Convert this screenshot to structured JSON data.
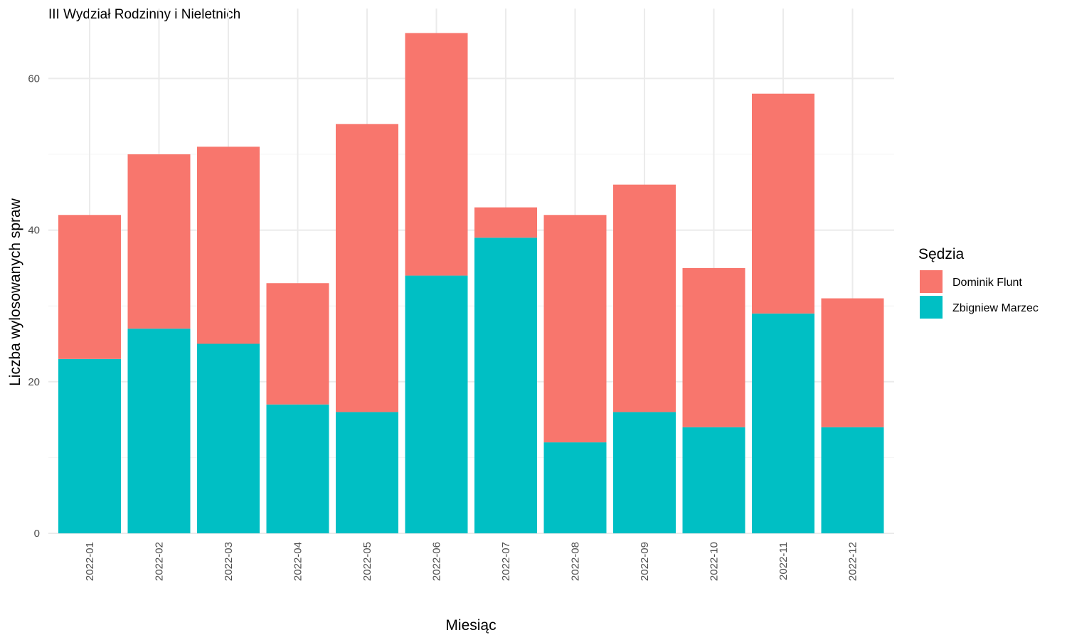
{
  "chart_data": {
    "type": "bar",
    "stacked": true,
    "title": "III Wydział Rodzinny i Nieletnich",
    "xlabel": "Miesiąc",
    "ylabel": "Liczba wylosowanych spraw",
    "categories": [
      "2022-01",
      "2022-02",
      "2022-03",
      "2022-04",
      "2022-05",
      "2022-06",
      "2022-07",
      "2022-08",
      "2022-09",
      "2022-10",
      "2022-11",
      "2022-12"
    ],
    "series": [
      {
        "name": "Zbigniew Marzec",
        "color": "#00BFC4",
        "values": [
          23,
          27,
          25,
          17,
          16,
          34,
          39,
          12,
          16,
          14,
          29,
          14
        ]
      },
      {
        "name": "Dominik Flunt",
        "color": "#F8766D",
        "values": [
          19,
          23,
          26,
          16,
          38,
          32,
          4,
          30,
          30,
          21,
          29,
          17
        ]
      }
    ],
    "ylim": [
      0,
      66
    ],
    "yticks": [
      0,
      20,
      40,
      60
    ],
    "grid": true,
    "legend": {
      "title": "Sędzia",
      "placement": "right",
      "order": [
        "Dominik Flunt",
        "Zbigniew Marzec"
      ]
    }
  }
}
